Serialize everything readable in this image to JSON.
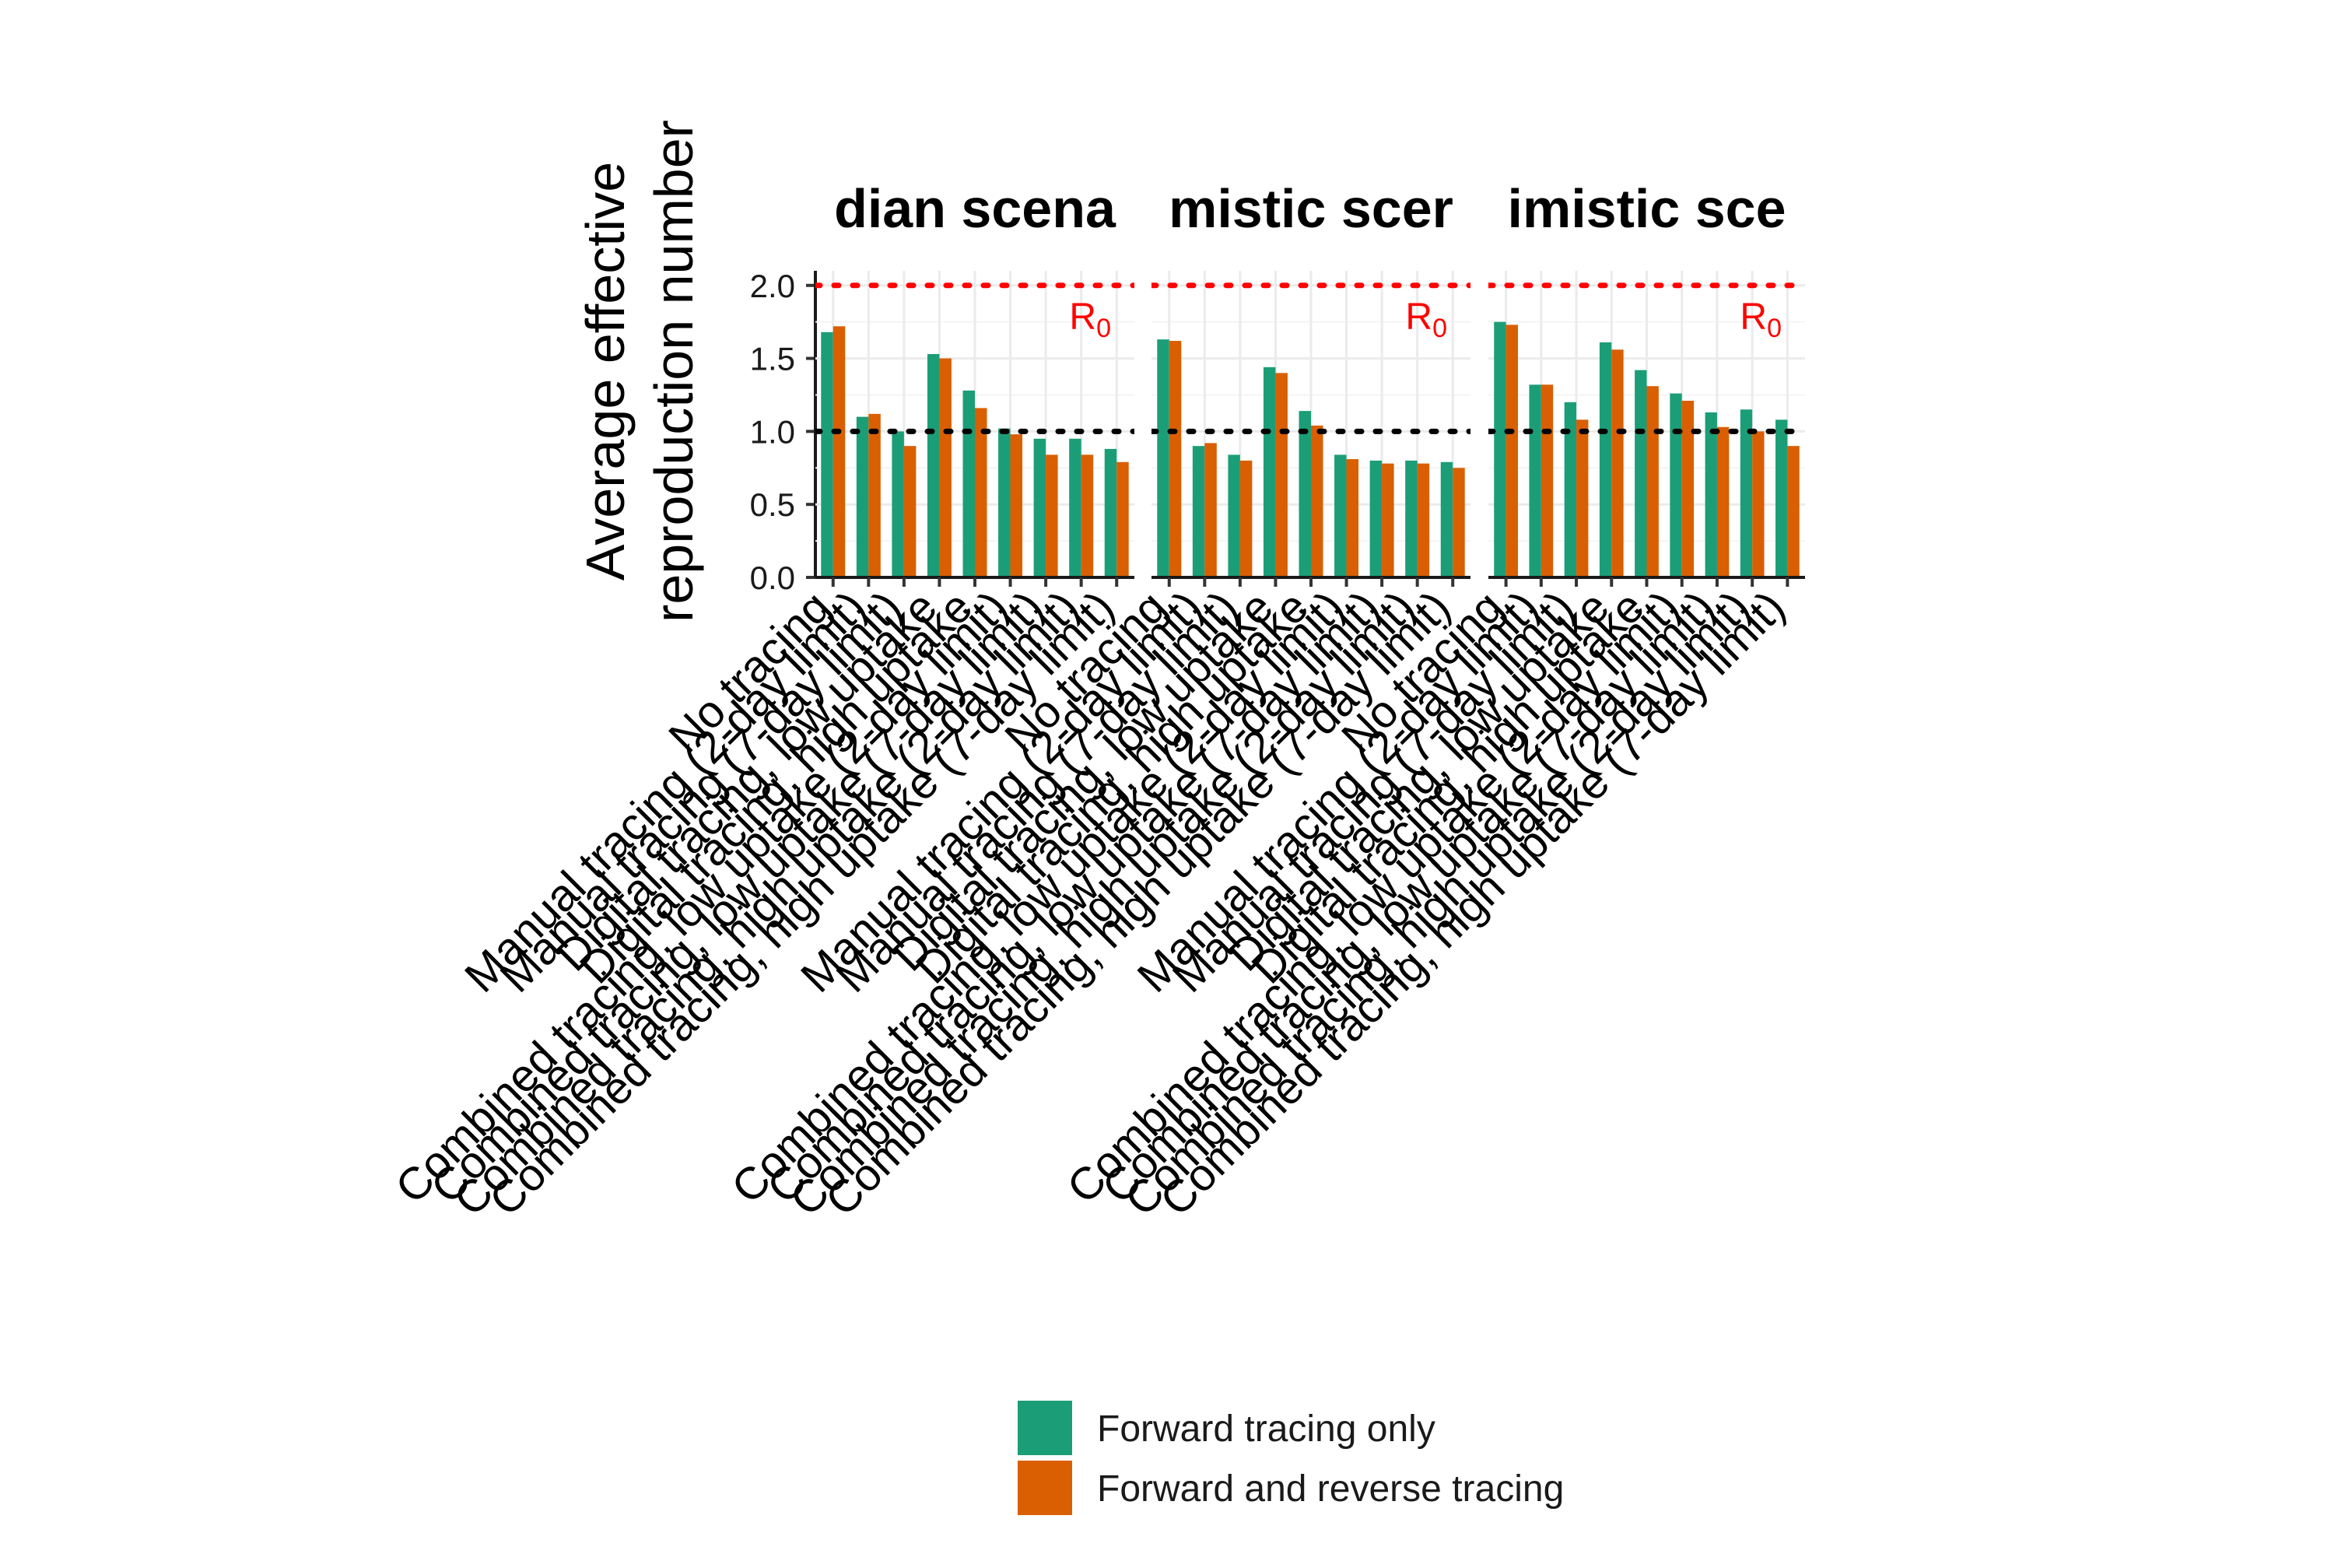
{
  "chart_data": {
    "type": "bar",
    "ylabel_lines": [
      "Average effective",
      "reproduction number"
    ],
    "yticks": [
      "0.0",
      "0.5",
      "1.0",
      "1.5",
      "2.0"
    ],
    "ylim": [
      0,
      2.1
    ],
    "reference_lines": [
      {
        "value": 2.0,
        "color": "#ff0000",
        "label_main": "R",
        "label_sub": "0"
      },
      {
        "value": 1.0,
        "color": "#000000"
      }
    ],
    "categories": [
      "No tracing",
      "Manual tracing (2-day limit)",
      "Manual tracing (7-day limit)",
      "Digital tracing, low uptake",
      "Digital tracing, high uptake",
      "Combined tracing, low uptake (2-day limit)",
      "Combined tracing, low uptake (7-day limit)",
      "Combined tracing, high uptake (2-day limit)",
      "Combined tracing, high uptake (7-day limit)"
    ],
    "series_names": [
      "Forward tracing only",
      "Forward and reverse tracing"
    ],
    "colors": [
      "#1b9e77",
      "#d95f02"
    ],
    "facets": [
      {
        "title": "dian scena",
        "series": [
          {
            "name": "Forward tracing only",
            "values": [
              1.68,
              1.1,
              1.0,
              1.53,
              1.28,
              1.02,
              0.95,
              0.95,
              0.88
            ]
          },
          {
            "name": "Forward and reverse tracing",
            "values": [
              1.72,
              1.12,
              0.9,
              1.5,
              1.16,
              0.98,
              0.84,
              0.84,
              0.79
            ]
          }
        ]
      },
      {
        "title": "mistic scer",
        "series": [
          {
            "name": "Forward tracing only",
            "values": [
              1.63,
              0.9,
              0.84,
              1.44,
              1.14,
              0.84,
              0.8,
              0.8,
              0.79
            ]
          },
          {
            "name": "Forward and reverse tracing",
            "values": [
              1.62,
              0.92,
              0.8,
              1.4,
              1.04,
              0.81,
              0.78,
              0.78,
              0.75
            ]
          }
        ]
      },
      {
        "title": "imistic sce",
        "series": [
          {
            "name": "Forward tracing only",
            "values": [
              1.75,
              1.32,
              1.2,
              1.61,
              1.42,
              1.26,
              1.13,
              1.15,
              1.08
            ]
          },
          {
            "name": "Forward and reverse tracing",
            "values": [
              1.73,
              1.32,
              1.08,
              1.56,
              1.31,
              1.21,
              1.03,
              1.0,
              0.9
            ]
          }
        ]
      }
    ],
    "legend_position": "bottom",
    "grid": true
  }
}
